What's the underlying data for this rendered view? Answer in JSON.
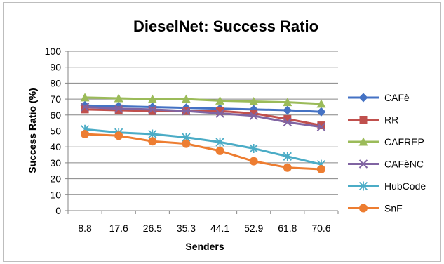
{
  "chart_data": {
    "type": "line",
    "title": "DieselNet: Success Ratio",
    "xlabel": "Senders",
    "ylabel": "Success Ratio (%)",
    "ylim": [
      0,
      100
    ],
    "ytick_step": 10,
    "grid": "horizontal",
    "legend_position": "right",
    "categories": [
      "8.8",
      "17.6",
      "26.5",
      "35.3",
      "44.1",
      "52.9",
      "61.8",
      "70.6"
    ],
    "series": [
      {
        "name": "CAFè",
        "color": "#4472C4",
        "marker": "diamond",
        "values": [
          66,
          65.5,
          65,
          64.5,
          64,
          63.5,
          63,
          62
        ]
      },
      {
        "name": "RR",
        "color": "#C0504D",
        "marker": "square",
        "values": [
          63.5,
          63,
          62.5,
          62.5,
          62.5,
          61,
          57.5,
          53.5
        ]
      },
      {
        "name": "CAFREP",
        "color": "#9BBB59",
        "marker": "triangle",
        "values": [
          71,
          70.5,
          70,
          70,
          69,
          68.5,
          68,
          67
        ]
      },
      {
        "name": "CAFèNC",
        "color": "#8064A2",
        "marker": "x",
        "values": [
          65,
          64,
          63.5,
          62.5,
          61,
          59.5,
          55.5,
          52.5
        ]
      },
      {
        "name": "HubCode",
        "color": "#4BACC6",
        "marker": "star",
        "values": [
          51,
          49,
          48,
          46,
          43,
          39,
          34,
          29
        ]
      },
      {
        "name": "SnF",
        "color": "#ED7D31",
        "marker": "circle",
        "values": [
          48,
          47,
          43.5,
          42,
          37.5,
          31,
          27,
          26
        ]
      }
    ]
  }
}
